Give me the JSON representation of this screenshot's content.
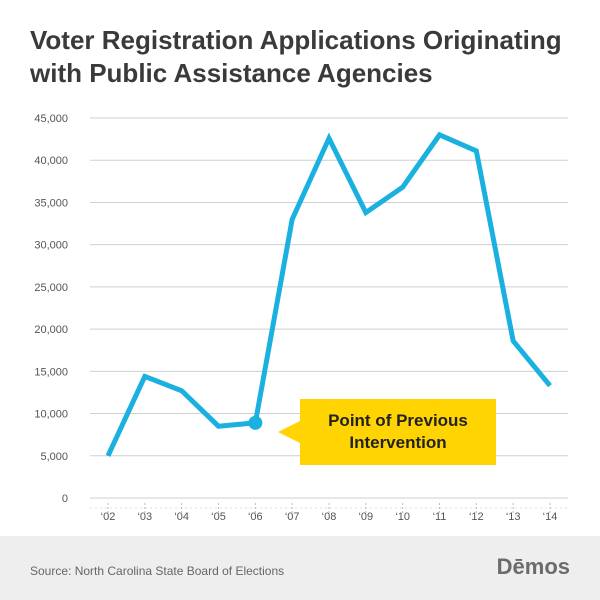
{
  "chart_data": {
    "type": "line",
    "title": "Voter Registration Applications Originating with Public Assistance Agencies",
    "categories": [
      "‘02",
      "‘03",
      "‘04",
      "‘05",
      "‘06",
      "‘07",
      "‘08",
      "‘09",
      "‘10",
      "‘11",
      "‘12",
      "‘13",
      "‘14"
    ],
    "series": [
      {
        "values": [
          5000,
          14400,
          12700,
          8500,
          8900,
          33000,
          42600,
          33800,
          36800,
          43000,
          41100,
          18600,
          13300
        ]
      }
    ],
    "ylim": [
      0,
      45000
    ],
    "y_ticks": [
      0,
      5000,
      10000,
      15000,
      20000,
      25000,
      30000,
      35000,
      40000,
      45000
    ],
    "y_tick_labels": [
      "0",
      "5,000",
      "10,000",
      "15,000",
      "20,000",
      "25,000",
      "30,000",
      "35,000",
      "40,000",
      "45,000"
    ],
    "grid": true,
    "line_color": "#1ab0e0",
    "annotation": {
      "category": "‘06",
      "lines": [
        "Point of Previous",
        "Intervention"
      ],
      "color": "#ffd400"
    }
  },
  "footer": {
    "source": "Source: North Carolina State Board of Elections",
    "logo": "Dēmos"
  }
}
